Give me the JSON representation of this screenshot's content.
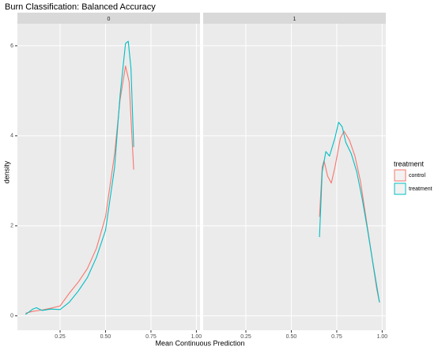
{
  "chart_data": {
    "type": "line",
    "title": "Burn Classification: Balanced Accuracy",
    "xlabel": "Mean Continuous Prediction",
    "ylabel": "density",
    "legend_title": "treatment",
    "facets": [
      "0",
      "1"
    ],
    "xlim": [
      0.015,
      1.02
    ],
    "ylim": [
      -0.32,
      6.49
    ],
    "xticks": [
      0.25,
      {
        "value": 0.5,
        "label": "0.50"
      },
      0.75,
      {
        "value": 1,
        "label": "1.00"
      }
    ],
    "yticks": [
      0,
      2,
      4,
      6
    ],
    "grid": true,
    "series": [
      {
        "name": "control",
        "color": "#F8766D",
        "facets": [
          {
            "x": [
              0.06,
              0.1,
              0.15,
              0.2,
              0.25,
              0.3,
              0.35,
              0.4,
              0.45,
              0.5,
              0.55,
              0.58,
              0.61,
              0.63,
              0.645,
              0.655
            ],
            "values": [
              0.06,
              0.1,
              0.13,
              0.17,
              0.22,
              0.5,
              0.75,
              1.05,
              1.5,
              2.2,
              3.6,
              4.8,
              5.55,
              5.2,
              4.0,
              3.25
            ]
          },
          {
            "x": [
              0.655,
              0.67,
              0.68,
              0.7,
              0.72,
              0.74,
              0.77,
              0.79,
              0.82,
              0.85,
              0.88,
              0.91,
              0.94,
              0.97,
              0.985
            ],
            "values": [
              2.2,
              3.3,
              3.45,
              3.1,
              2.95,
              3.3,
              3.95,
              4.1,
              3.9,
              3.55,
              3.0,
              2.2,
              1.4,
              0.6,
              0.3
            ]
          }
        ]
      },
      {
        "name": "treatment",
        "color": "#00BFC4",
        "facets": [
          {
            "x": [
              0.06,
              0.1,
              0.12,
              0.15,
              0.2,
              0.25,
              0.3,
              0.35,
              0.4,
              0.45,
              0.5,
              0.55,
              0.58,
              0.61,
              0.625,
              0.64,
              0.655
            ],
            "values": [
              0.03,
              0.15,
              0.18,
              0.12,
              0.15,
              0.14,
              0.3,
              0.55,
              0.85,
              1.3,
              1.9,
              3.3,
              4.9,
              6.05,
              6.1,
              5.5,
              3.75
            ]
          },
          {
            "x": [
              0.655,
              0.67,
              0.69,
              0.71,
              0.74,
              0.76,
              0.78,
              0.8,
              0.83,
              0.86,
              0.89,
              0.92,
              0.95,
              0.985
            ],
            "values": [
              1.75,
              3.2,
              3.65,
              3.55,
              3.95,
              4.3,
              4.2,
              3.85,
              3.6,
              3.2,
              2.6,
              1.9,
              1.15,
              0.3
            ]
          }
        ]
      }
    ]
  }
}
